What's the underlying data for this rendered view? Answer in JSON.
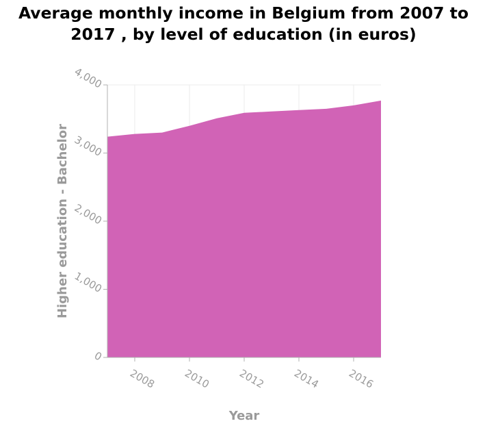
{
  "chart_data": {
    "type": "area",
    "title": "Average monthly income in Belgium from 2007 to 2017 , by level of education (in euros)",
    "xlabel": "Year",
    "ylabel": "Higher education - Bachelor",
    "x": [
      2007,
      2008,
      2009,
      2010,
      2011,
      2012,
      2013,
      2014,
      2015,
      2016,
      2017
    ],
    "values": [
      3240,
      3280,
      3300,
      3400,
      3510,
      3590,
      3610,
      3630,
      3650,
      3700,
      3770
    ],
    "xlim": [
      2007,
      2017
    ],
    "ylim": [
      0,
      4000
    ],
    "x_ticks": [
      2008,
      2010,
      2012,
      2014,
      2016
    ],
    "y_ticks": [
      0,
      1000,
      2000,
      3000,
      4000
    ],
    "x_tick_labels": [
      "2008",
      "2010",
      "2012",
      "2014",
      "2016"
    ],
    "y_tick_labels": [
      "0",
      "1,000",
      "2,000",
      "3,000",
      "4,000"
    ],
    "grid": true,
    "fill_color": "#d163b6",
    "grid_color": "#ebebeb",
    "axis_color": "#b0b0b0"
  }
}
